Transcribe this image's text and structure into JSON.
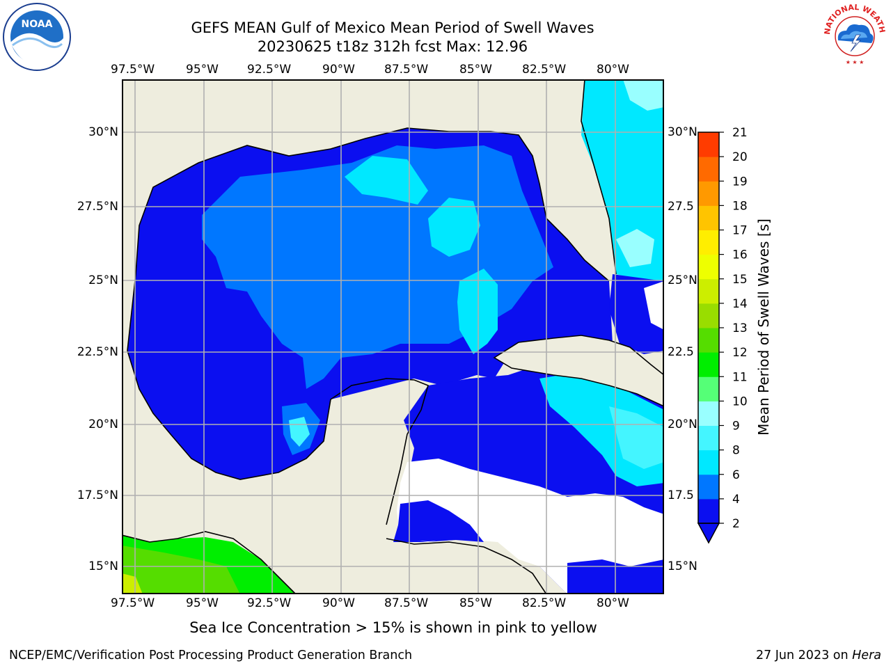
{
  "title": {
    "line1": "GEFS MEAN Gulf of Mexico Mean Period of Swell Waves",
    "line2": "20230625 t18z 312h fcst   Max: 12.96"
  },
  "map": {
    "lon_labels_top": [
      "97.5°W",
      "95°W",
      "92.5°W",
      "90°W",
      "87.5°W",
      "85°W",
      "82.5°W",
      "80°W"
    ],
    "lon_labels_bottom": [
      "97.5°W",
      "95°W",
      "92.5°W",
      "90°W",
      "87.5°W",
      "85°W",
      "82.5°W",
      "80°W"
    ],
    "lat_labels_left": [
      "30°N",
      "27.5°N",
      "25°N",
      "22.5°N",
      "20°N",
      "17.5°N",
      "15°N"
    ],
    "lat_labels_right": [
      "30°N",
      "27.5",
      "25°N",
      "22.5",
      "20°N",
      "17.5",
      "15°N"
    ],
    "colors": {
      "land": "#eeedde",
      "grid": "#b0b0b0",
      "coast": "#000000"
    }
  },
  "colorbar": {
    "label": "Mean Period of Swell Waves [s]",
    "ticks": [
      "2",
      "4",
      "6",
      "8",
      "9",
      "10",
      "11",
      "12",
      "13",
      "14",
      "15",
      "16",
      "17",
      "18",
      "19",
      "20",
      "21"
    ],
    "colors": [
      "#0b0ff0",
      "#0077ff",
      "#00e8ff",
      "#44f5ff",
      "#99ffff",
      "#55ff77",
      "#00ee00",
      "#55dd00",
      "#99dd00",
      "#ccee00",
      "#eeff00",
      "#ffee00",
      "#ffc400",
      "#ff9900",
      "#ff6a00",
      "#ff3c00",
      "#ff0000"
    ]
  },
  "note": "Sea Ice Concentration > 15% is shown in pink to yellow",
  "footer": {
    "left": "NCEP/EMC/Verification Post Processing Product Generation Branch",
    "right_date": "27 Jun 2023 on ",
    "right_machine": "Hera"
  },
  "logos": {
    "noaa": "NOAA",
    "nws": "NATIONAL WEATHER SERVICE"
  }
}
